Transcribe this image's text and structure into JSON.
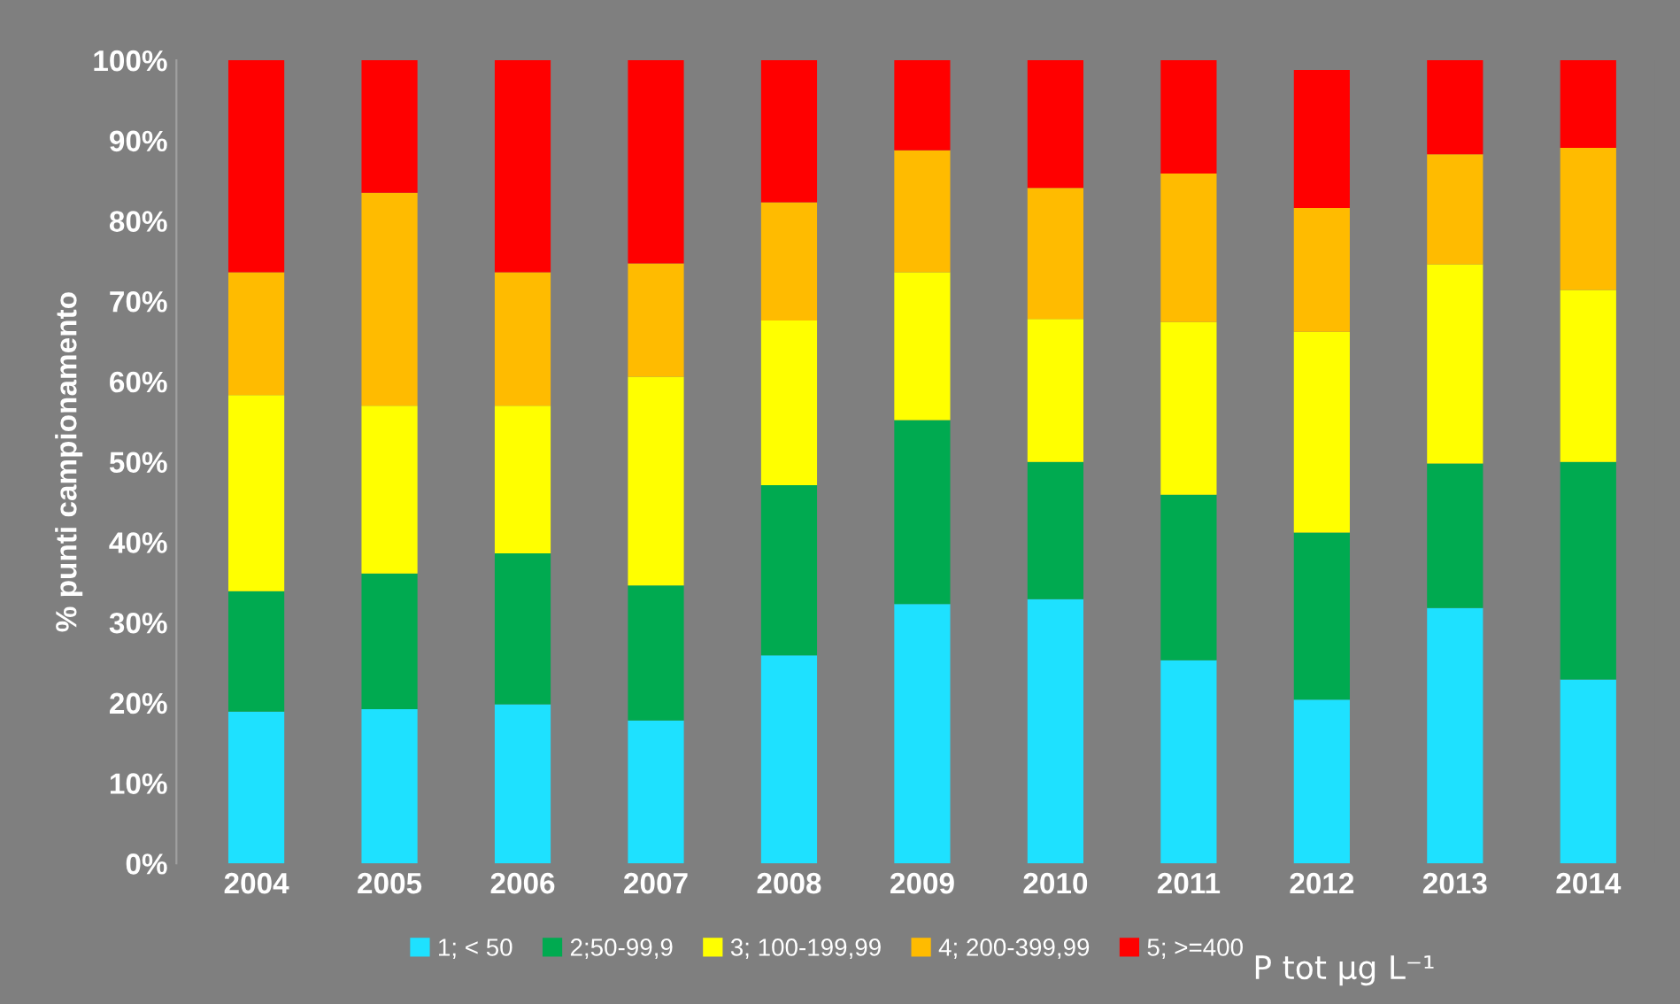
{
  "chart_data": {
    "type": "bar",
    "stacked": true,
    "ylabel": "% punti campionamento",
    "xlabel": "P tot µg L⁻¹",
    "categories": [
      "2004",
      "2005",
      "2006",
      "2007",
      "2008",
      "2009",
      "2010",
      "2011",
      "2012",
      "2013",
      "2014"
    ],
    "series": [
      {
        "name": "1; < 50",
        "color": "#1ee1ff",
        "values": [
          18.9,
          19.2,
          19.8,
          17.8,
          25.9,
          32.3,
          32.9,
          25.3,
          20.4,
          31.8,
          22.9
        ]
      },
      {
        "name": "2;50-99,9",
        "color": "#00aa50",
        "values": [
          15.0,
          16.9,
          18.8,
          16.8,
          21.2,
          22.9,
          17.1,
          20.6,
          20.8,
          18.0,
          27.1
        ]
      },
      {
        "name": "3; 100-199,99",
        "color": "#ffff00",
        "values": [
          24.4,
          20.9,
          18.4,
          26.0,
          20.5,
          18.4,
          17.8,
          21.5,
          25.0,
          24.8,
          21.4
        ]
      },
      {
        "name": "4; 200-399,99",
        "color": "#ffbb00",
        "values": [
          15.3,
          26.5,
          16.6,
          14.1,
          14.7,
          15.2,
          16.3,
          18.5,
          15.4,
          13.7,
          17.7
        ]
      },
      {
        "name": "5; >=400",
        "color": "#ff0000",
        "values": [
          26.4,
          16.5,
          26.4,
          25.3,
          17.7,
          11.2,
          15.9,
          14.1,
          17.2,
          11.7,
          10.9
        ]
      }
    ],
    "ylim": [
      0,
      100
    ],
    "yticks": [
      {
        "value": 0,
        "label": "0%"
      },
      {
        "value": 10,
        "label": "10%"
      },
      {
        "value": 20,
        "label": "20%"
      },
      {
        "value": 30,
        "label": "30%"
      },
      {
        "value": 40,
        "label": "40%"
      },
      {
        "value": 50,
        "label": "50%"
      },
      {
        "value": 60,
        "label": "60%"
      },
      {
        "value": 70,
        "label": "70%"
      },
      {
        "value": 80,
        "label": "80%"
      },
      {
        "value": 90,
        "label": "90%"
      },
      {
        "value": 100,
        "label": "100%"
      }
    ],
    "grid": false,
    "legend": "bottom"
  }
}
